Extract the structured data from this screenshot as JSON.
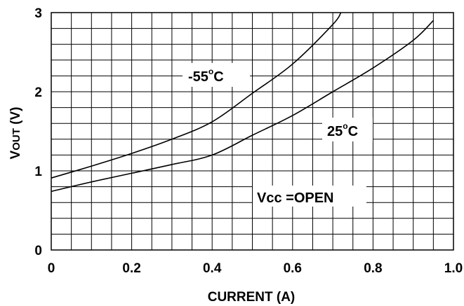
{
  "chart_data": {
    "type": "line",
    "title": "",
    "xlabel": "CURRENT  (A)",
    "ylabel_main": "V",
    "ylabel_sub": "OUT",
    "ylabel_unit": " (V)",
    "xlim": [
      0,
      1.0
    ],
    "ylim": [
      0,
      3
    ],
    "x_ticks": [
      "0",
      "0.2",
      "0.4",
      "0.6",
      "0.8",
      "1.0"
    ],
    "y_ticks": [
      "0",
      "1",
      "2",
      "3"
    ],
    "grid": true,
    "series": [
      {
        "name": "-55°C",
        "label_main": "-55",
        "label_deg": "o",
        "label_unit": "C",
        "x": [
          0,
          0.1,
          0.2,
          0.3,
          0.4,
          0.5,
          0.6,
          0.7,
          0.72
        ],
        "y": [
          0.91,
          1.06,
          1.22,
          1.4,
          1.62,
          1.98,
          2.35,
          2.85,
          3.0
        ]
      },
      {
        "name": "25°C",
        "label_main": "25",
        "label_deg": "o",
        "label_unit": "C",
        "x": [
          0,
          0.1,
          0.2,
          0.3,
          0.4,
          0.5,
          0.6,
          0.7,
          0.8,
          0.9,
          0.95
        ],
        "y": [
          0.74,
          0.86,
          0.97,
          1.08,
          1.2,
          1.45,
          1.7,
          2.0,
          2.3,
          2.65,
          2.9
        ]
      }
    ],
    "annotation": "Vcc =OPEN"
  }
}
